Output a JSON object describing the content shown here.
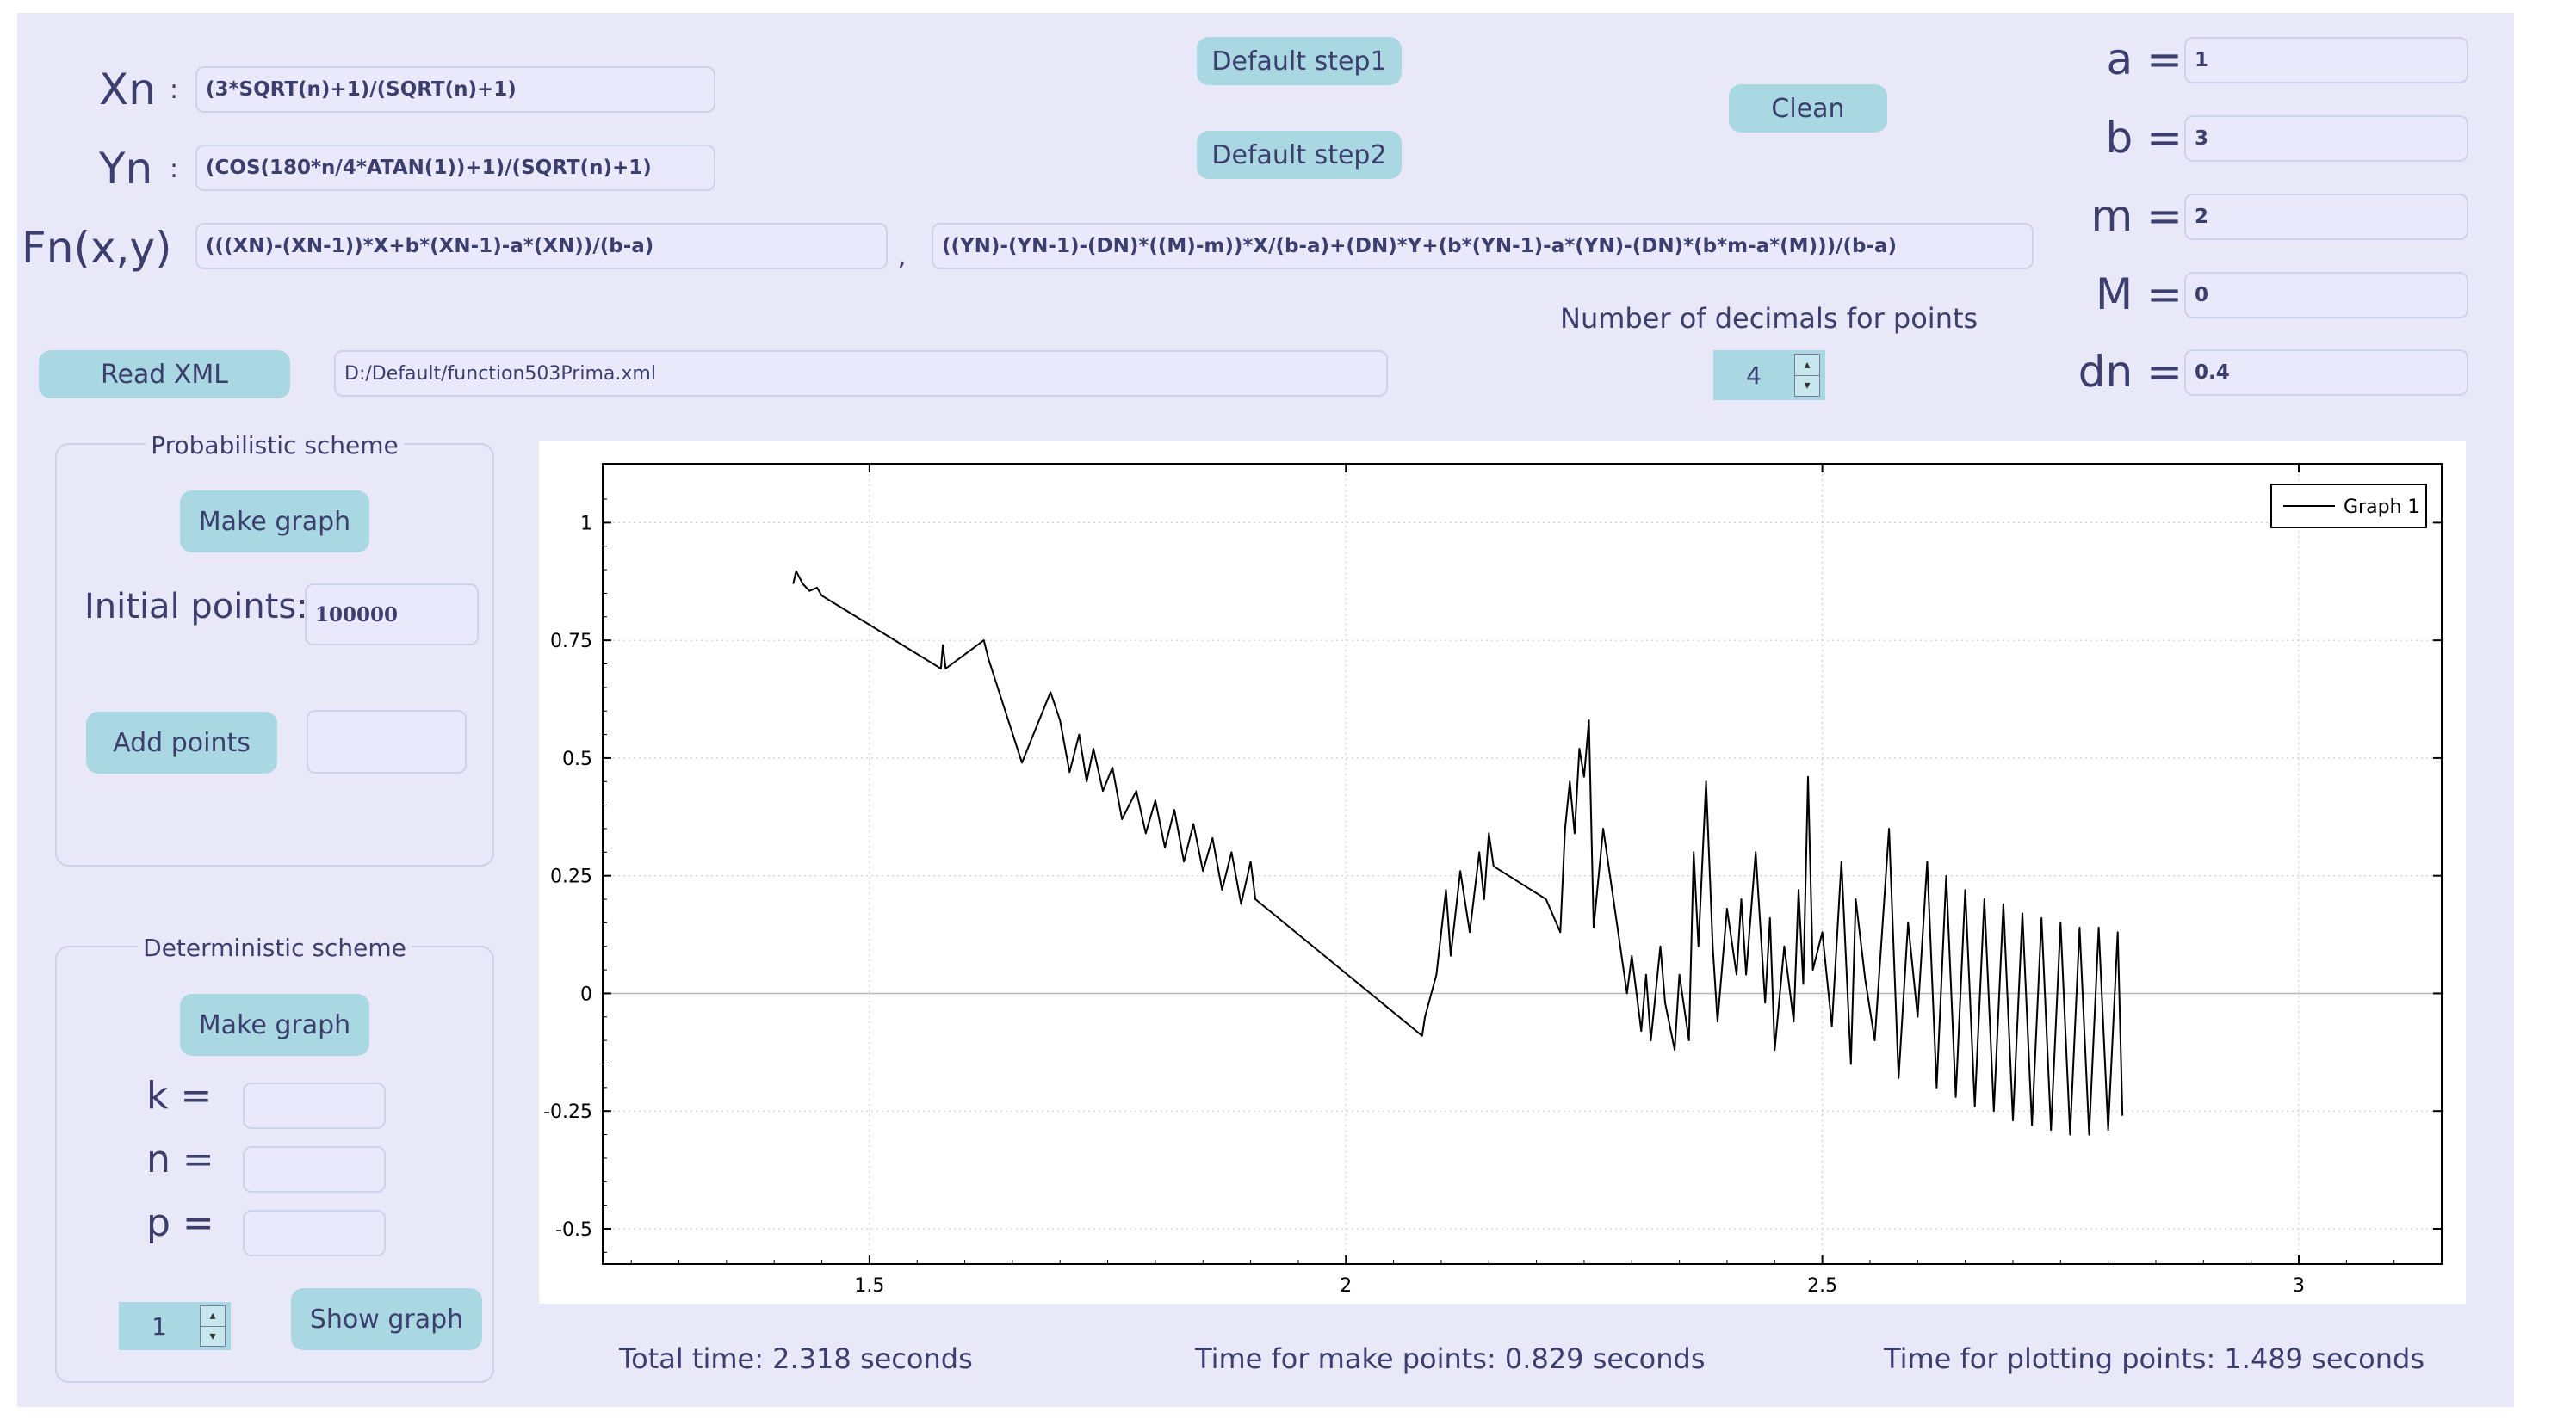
{
  "formulas": {
    "xn_label": "Xn",
    "xn_sep": ":",
    "xn_value": "(3*SQRT(n)+1)/(SQRT(n)+1)",
    "yn_label": "Yn",
    "yn_sep": ":",
    "yn_value": "(COS(180*n/4*ATAN(1))+1)/(SQRT(n)+1)",
    "fn_label": "Fn(x,y)",
    "fn_x_value": "(((XN)-(XN-1))*X+b*(XN-1)-a*(XN))/(b-a)",
    "fn_comma": ",",
    "fn_y_value": "((YN)-(YN-1)-(DN)*((M)-m))*X/(b-a)+(DN)*Y+(b*(YN-1)-a*(YN)-(DN)*(b*m-a*(M)))/(b-a)"
  },
  "buttons": {
    "default_step1": "Default step1",
    "default_step2": "Default step2",
    "clean": "Clean",
    "read_xml": "Read XML"
  },
  "xml_path": "D:/Default/function503Prima.xml",
  "decimals": {
    "label": "Number of decimals for points",
    "value": "4"
  },
  "params": [
    {
      "name": "a",
      "eq": "=",
      "value": "1"
    },
    {
      "name": "b",
      "eq": "=",
      "value": "3"
    },
    {
      "name": "m",
      "eq": "=",
      "value": "2"
    },
    {
      "name": "M",
      "eq": "=",
      "value": "0"
    },
    {
      "name": "dn",
      "eq": "=",
      "value": "0.4"
    }
  ],
  "probabilistic": {
    "title": "Probabilistic scheme",
    "make_graph": "Make graph",
    "initial_points_label": "Initial points:",
    "initial_points_value": "100000",
    "add_points": "Add points",
    "add_points_value": ""
  },
  "deterministic": {
    "title": "Deterministic scheme",
    "make_graph": "Make graph",
    "k_label": "k =",
    "n_label": "n =",
    "p_label": "p =",
    "k_value": "",
    "n_value": "",
    "p_value": "",
    "spin_value": "1",
    "show_graph": "Show graph"
  },
  "timing": {
    "total": "Total time: 2.318 seconds",
    "make_points": "Time for make points: 0.829 seconds",
    "plotting": "Time for plotting points: 1.489 seconds"
  },
  "icons": {
    "spin_up": "spin-up-arrow-icon",
    "spin_down": "spin-down-arrow-icon"
  },
  "colors": {
    "background": "#e8e8f8",
    "button": "#a9d8e2",
    "text": "#3c3f6e",
    "series": "#000000"
  },
  "chart_data": {
    "type": "line",
    "title": "",
    "xlabel": "",
    "ylabel": "",
    "xlim": [
      1.22,
      3.15
    ],
    "ylim": [
      -0.575,
      1.125
    ],
    "xticks": [
      1.5,
      2,
      2.5,
      3
    ],
    "yticks": [
      -0.5,
      -0.25,
      0,
      0.25,
      0.5,
      0.75,
      1
    ],
    "xtick_labels": [
      "1.5",
      "2",
      "2.5",
      "3"
    ],
    "ytick_labels": [
      "-0.5",
      "-0.25",
      "0",
      "0.25",
      "0.5",
      "0.75",
      "1"
    ],
    "grid": true,
    "legend_position": "top-right",
    "series": [
      {
        "name": "Graph 1",
        "color": "#000000",
        "points": [
          [
            1.42,
            0.87
          ],
          [
            1.423,
            0.897
          ],
          [
            1.43,
            0.87
          ],
          [
            1.437,
            0.855
          ],
          [
            1.445,
            0.862
          ],
          [
            1.45,
            0.845
          ],
          [
            1.458,
            0.835
          ],
          [
            1.575,
            0.69
          ],
          [
            1.577,
            0.74
          ],
          [
            1.58,
            0.69
          ],
          [
            1.62,
            0.75
          ],
          [
            1.625,
            0.71
          ],
          [
            1.66,
            0.49
          ],
          [
            1.665,
            0.515
          ],
          [
            1.69,
            0.64
          ],
          [
            1.7,
            0.58
          ],
          [
            1.71,
            0.47
          ],
          [
            1.72,
            0.55
          ],
          [
            1.728,
            0.45
          ],
          [
            1.735,
            0.52
          ],
          [
            1.745,
            0.43
          ],
          [
            1.755,
            0.48
          ],
          [
            1.765,
            0.37
          ],
          [
            1.78,
            0.43
          ],
          [
            1.79,
            0.34
          ],
          [
            1.8,
            0.41
          ],
          [
            1.81,
            0.31
          ],
          [
            1.82,
            0.39
          ],
          [
            1.83,
            0.28
          ],
          [
            1.84,
            0.36
          ],
          [
            1.85,
            0.26
          ],
          [
            1.86,
            0.33
          ],
          [
            1.87,
            0.22
          ],
          [
            1.88,
            0.3
          ],
          [
            1.89,
            0.19
          ],
          [
            1.9,
            0.28
          ],
          [
            1.905,
            0.2
          ],
          [
            2.08,
            -0.09
          ],
          [
            2.083,
            -0.05
          ],
          [
            2.095,
            0.04
          ],
          [
            2.105,
            0.22
          ],
          [
            2.11,
            0.08
          ],
          [
            2.12,
            0.26
          ],
          [
            2.13,
            0.13
          ],
          [
            2.14,
            0.3
          ],
          [
            2.145,
            0.2
          ],
          [
            2.15,
            0.34
          ],
          [
            2.155,
            0.27
          ],
          [
            2.21,
            0.2
          ],
          [
            2.225,
            0.13
          ],
          [
            2.23,
            0.35
          ],
          [
            2.235,
            0.45
          ],
          [
            2.24,
            0.34
          ],
          [
            2.245,
            0.52
          ],
          [
            2.25,
            0.46
          ],
          [
            2.255,
            0.58
          ],
          [
            2.26,
            0.14
          ],
          [
            2.27,
            0.35
          ],
          [
            2.285,
            0.14
          ],
          [
            2.295,
            0.0
          ],
          [
            2.3,
            0.08
          ],
          [
            2.31,
            -0.08
          ],
          [
            2.315,
            0.04
          ],
          [
            2.32,
            -0.1
          ],
          [
            2.33,
            0.1
          ],
          [
            2.335,
            -0.02
          ],
          [
            2.345,
            -0.12
          ],
          [
            2.35,
            0.04
          ],
          [
            2.36,
            -0.1
          ],
          [
            2.365,
            0.3
          ],
          [
            2.37,
            0.1
          ],
          [
            2.378,
            0.45
          ],
          [
            2.385,
            0.1
          ],
          [
            2.39,
            -0.06
          ],
          [
            2.4,
            0.18
          ],
          [
            2.41,
            0.04
          ],
          [
            2.415,
            0.2
          ],
          [
            2.42,
            0.04
          ],
          [
            2.43,
            0.3
          ],
          [
            2.44,
            -0.02
          ],
          [
            2.445,
            0.16
          ],
          [
            2.45,
            -0.12
          ],
          [
            2.46,
            0.1
          ],
          [
            2.47,
            -0.06
          ],
          [
            2.475,
            0.22
          ],
          [
            2.48,
            0.02
          ],
          [
            2.485,
            0.46
          ],
          [
            2.49,
            0.05
          ],
          [
            2.5,
            0.13
          ],
          [
            2.51,
            -0.07
          ],
          [
            2.52,
            0.28
          ],
          [
            2.53,
            -0.15
          ],
          [
            2.535,
            0.2
          ],
          [
            2.545,
            0.03
          ],
          [
            2.555,
            -0.1
          ],
          [
            2.57,
            0.35
          ],
          [
            2.58,
            -0.18
          ],
          [
            2.59,
            0.15
          ],
          [
            2.6,
            -0.05
          ],
          [
            2.61,
            0.28
          ],
          [
            2.62,
            -0.2
          ],
          [
            2.63,
            0.25
          ],
          [
            2.64,
            -0.22
          ],
          [
            2.65,
            0.22
          ],
          [
            2.66,
            -0.24
          ],
          [
            2.67,
            0.2
          ],
          [
            2.68,
            -0.25
          ],
          [
            2.69,
            0.19
          ],
          [
            2.7,
            -0.27
          ],
          [
            2.71,
            0.17
          ],
          [
            2.72,
            -0.28
          ],
          [
            2.73,
            0.16
          ],
          [
            2.74,
            -0.29
          ],
          [
            2.75,
            0.15
          ],
          [
            2.76,
            -0.3
          ],
          [
            2.77,
            0.14
          ],
          [
            2.78,
            -0.3
          ],
          [
            2.79,
            0.14
          ],
          [
            2.8,
            -0.29
          ],
          [
            2.81,
            0.13
          ],
          [
            2.815,
            -0.26
          ]
        ]
      }
    ]
  }
}
